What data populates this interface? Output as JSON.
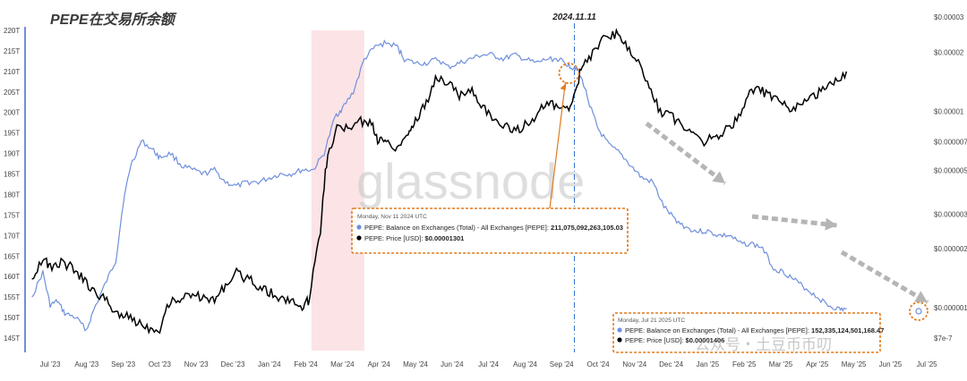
{
  "chart_data": {
    "type": "line",
    "title": "PEPE在交易所余额",
    "annotation_date": "2024.11.11",
    "watermark": "glassnode",
    "watermark2": "公众号・土豆币币叨",
    "left_axis_ticks": [
      "220T",
      "215T",
      "210T",
      "205T",
      "200T",
      "195T",
      "190T",
      "185T",
      "180T",
      "175T",
      "170T",
      "165T",
      "160T",
      "155T",
      "150T",
      "145T"
    ],
    "right_axis_ticks": [
      "$0.00003",
      "$0.00002",
      "$0.00001",
      "$0.000007",
      "$0.000005",
      "$0.000003",
      "$0.000002",
      "$0.000001",
      "$7e-7"
    ],
    "x_ticks": [
      "Jul '23",
      "Aug '23",
      "Sep '23",
      "Oct '23",
      "Nov '23",
      "Dec '23",
      "Jan '24",
      "Feb '24",
      "Mar '24",
      "Apr '24",
      "May '24",
      "Jun '24",
      "Jul '24",
      "Aug '24",
      "Sep '24",
      "Oct '24",
      "Nov '24",
      "Dec '24",
      "Jan '25",
      "Feb '25",
      "Mar '25",
      "Apr '25",
      "May '25",
      "Jun '25",
      "Jul '25"
    ],
    "highlight_range": [
      "Feb '24",
      "Mar '24"
    ],
    "series": [
      {
        "name": "PEPE: Balance on Exchanges (Total) - All Exchanges [PEPE]",
        "color": "#6f8fdc",
        "axis": "left",
        "unit": "T",
        "points": [
          [
            6.5,
            155
          ],
          [
            6.8,
            161
          ],
          [
            7.0,
            153
          ],
          [
            7.2,
            154
          ],
          [
            7.4,
            151
          ],
          [
            7.7,
            150
          ],
          [
            8.0,
            147
          ],
          [
            8.2,
            152
          ],
          [
            8.5,
            158
          ],
          [
            8.8,
            164
          ],
          [
            9.0,
            178
          ],
          [
            9.2,
            187
          ],
          [
            9.5,
            193
          ],
          [
            9.8,
            191
          ],
          [
            10.0,
            189
          ],
          [
            10.3,
            190
          ],
          [
            10.6,
            187
          ],
          [
            10.9,
            186
          ],
          [
            11.2,
            185
          ],
          [
            11.5,
            186
          ],
          [
            11.8,
            183
          ],
          [
            12.1,
            182
          ],
          [
            12.4,
            183
          ],
          [
            12.7,
            183
          ],
          [
            13.0,
            184
          ],
          [
            13.3,
            185
          ],
          [
            13.6,
            185
          ],
          [
            13.9,
            186
          ],
          [
            14.2,
            186
          ],
          [
            14.5,
            190
          ],
          [
            14.8,
            199
          ],
          [
            15.0,
            201
          ],
          [
            15.3,
            205
          ],
          [
            15.6,
            213
          ],
          [
            15.9,
            216
          ],
          [
            16.2,
            217
          ],
          [
            16.5,
            216
          ],
          [
            16.7,
            213
          ],
          [
            17.0,
            212
          ],
          [
            17.3,
            212
          ],
          [
            17.6,
            213
          ],
          [
            17.9,
            211
          ],
          [
            18.2,
            212
          ],
          [
            18.5,
            213
          ],
          [
            18.8,
            214
          ],
          [
            19.1,
            214
          ],
          [
            19.4,
            213
          ],
          [
            19.7,
            214
          ],
          [
            20.0,
            213
          ],
          [
            20.3,
            212
          ],
          [
            20.6,
            213
          ],
          [
            20.9,
            213
          ],
          [
            21.1,
            212
          ],
          [
            21.3,
            211
          ],
          [
            21.4,
            211
          ],
          [
            21.6,
            207
          ],
          [
            21.8,
            201
          ],
          [
            22.0,
            196
          ],
          [
            22.3,
            192
          ],
          [
            22.6,
            190
          ],
          [
            22.9,
            187
          ],
          [
            23.2,
            184
          ],
          [
            23.5,
            183
          ],
          [
            23.8,
            177
          ],
          [
            24.1,
            174
          ],
          [
            24.4,
            172
          ],
          [
            24.7,
            171
          ],
          [
            25.0,
            171
          ],
          [
            25.3,
            170
          ],
          [
            25.6,
            170
          ],
          [
            25.9,
            168
          ],
          [
            26.2,
            168
          ],
          [
            26.5,
            167
          ],
          [
            26.8,
            162
          ],
          [
            27.1,
            161
          ],
          [
            27.4,
            159
          ],
          [
            27.7,
            157
          ],
          [
            28.0,
            155
          ],
          [
            28.3,
            153
          ],
          [
            28.6,
            152
          ],
          [
            28.8,
            152
          ]
        ]
      },
      {
        "name": "PEPE: Price [USD]",
        "color": "#000000",
        "axis": "right",
        "unit": "USD",
        "points": [
          [
            6.5,
            1.4e-06
          ],
          [
            6.8,
            1.8e-06
          ],
          [
            7.0,
            1.6e-06
          ],
          [
            7.3,
            1.7e-06
          ],
          [
            7.6,
            1.6e-06
          ],
          [
            7.9,
            1.4e-06
          ],
          [
            8.2,
            1.2e-06
          ],
          [
            8.5,
            1.1e-06
          ],
          [
            8.8,
            9.5e-07
          ],
          [
            9.1,
            9e-07
          ],
          [
            9.4,
            8.5e-07
          ],
          [
            9.7,
            7.9e-07
          ],
          [
            10.0,
            7.8e-07
          ],
          [
            10.3,
            1.1e-06
          ],
          [
            10.6,
            1.1e-06
          ],
          [
            10.9,
            1.2e-06
          ],
          [
            11.2,
            1.1e-06
          ],
          [
            11.5,
            1.1e-06
          ],
          [
            11.8,
            1.3e-06
          ],
          [
            12.1,
            1.5e-06
          ],
          [
            12.4,
            1.4e-06
          ],
          [
            12.7,
            1.3e-06
          ],
          [
            13.0,
            1.2e-06
          ],
          [
            13.3,
            1.1e-06
          ],
          [
            13.6,
            1.1e-06
          ],
          [
            13.9,
            1e-06
          ],
          [
            14.1,
            1.1e-06
          ],
          [
            14.4,
            2.5e-06
          ],
          [
            14.6,
            6e-06
          ],
          [
            14.9,
            8.5e-06
          ],
          [
            15.2,
            8e-06
          ],
          [
            15.5,
            9e-06
          ],
          [
            15.8,
            8.5e-06
          ],
          [
            16.0,
            7e-06
          ],
          [
            16.2,
            7.2e-06
          ],
          [
            16.5,
            6.5e-06
          ],
          [
            16.8,
            7.8e-06
          ],
          [
            17.0,
            9e-06
          ],
          [
            17.3,
            1.1e-05
          ],
          [
            17.6,
            1.5e-05
          ],
          [
            17.9,
            1.4e-05
          ],
          [
            18.2,
            1.2e-05
          ],
          [
            18.5,
            1.3e-05
          ],
          [
            18.8,
            1.1e-05
          ],
          [
            19.1,
            9e-06
          ],
          [
            19.4,
            8.5e-06
          ],
          [
            19.7,
            8e-06
          ],
          [
            20.0,
            8.5e-06
          ],
          [
            20.3,
            9.5e-06
          ],
          [
            20.6,
            1.1e-05
          ],
          [
            20.9,
            1.05e-05
          ],
          [
            21.2,
            1e-05
          ],
          [
            21.4,
            1.3e-05
          ],
          [
            21.6,
            1.8e-05
          ],
          [
            21.9,
            2e-05
          ],
          [
            22.2,
            2.4e-05
          ],
          [
            22.5,
            2.5e-05
          ],
          [
            22.8,
            2.1e-05
          ],
          [
            23.1,
            1.8e-05
          ],
          [
            23.4,
            1.3e-05
          ],
          [
            23.7,
            1e-05
          ],
          [
            24.0,
            9.5e-06
          ],
          [
            24.3,
            8.5e-06
          ],
          [
            24.6,
            8e-06
          ],
          [
            24.9,
            7e-06
          ],
          [
            25.2,
            7.5e-06
          ],
          [
            25.5,
            8e-06
          ],
          [
            25.8,
            9e-06
          ],
          [
            26.1,
            1.2e-05
          ],
          [
            26.4,
            1.3e-05
          ],
          [
            26.7,
            1.2e-05
          ],
          [
            27.0,
            1.1e-05
          ],
          [
            27.3,
            1e-05
          ],
          [
            27.6,
            1.1e-05
          ],
          [
            27.9,
            1.2e-05
          ],
          [
            28.2,
            1.3e-05
          ],
          [
            28.5,
            1.4e-05
          ],
          [
            28.8,
            1.6e-05
          ]
        ]
      }
    ]
  },
  "tooltip1": {
    "date": "Monday, Nov 11 2024 UTC",
    "line1_label": "PEPE: Balance on Exchanges (Total) - All Exchanges [PEPE]:",
    "line1_value": "211,075,092,263,105.03",
    "line2_label": "PEPE: Price [USD]:",
    "line2_value": "$0.00001301"
  },
  "tooltip2": {
    "date": "Monday, Jul 21 2025 UTC",
    "line1_label": "PEPE: Balance on Exchanges (Total) - All Exchanges [PEPE]:",
    "line1_value": "152,335,124,501,168.47",
    "line2_label": "PEPE: Price [USD]:",
    "line2_value": "$0.00001406"
  },
  "colors": {
    "balance": "#6f8fdc",
    "price": "#000000",
    "highlight": "#fbe3e6",
    "annotation": "#e07a1f",
    "arrow_gray": "#b5b5b5",
    "vline": "#2f6fd0"
  }
}
